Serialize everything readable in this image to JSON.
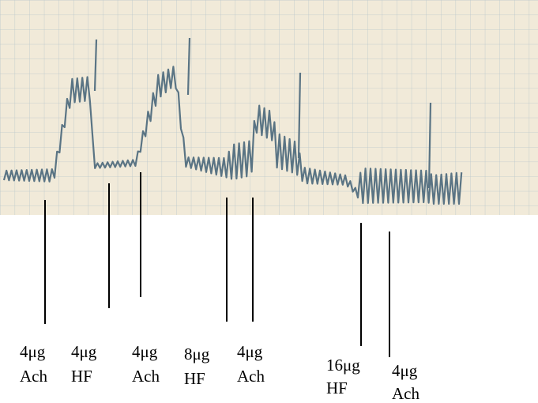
{
  "labels": [
    {
      "dose": "4μg",
      "drug": "Ach"
    },
    {
      "dose": "4μg",
      "drug": "HF"
    },
    {
      "dose": "4μg",
      "drug": "Ach"
    },
    {
      "dose": "8μg",
      "drug": "HF"
    },
    {
      "dose": "4μg",
      "drug": "Ach"
    },
    {
      "dose": "16μg",
      "drug": "HF"
    },
    {
      "dose": "4μg",
      "drug": "Ach"
    }
  ]
}
